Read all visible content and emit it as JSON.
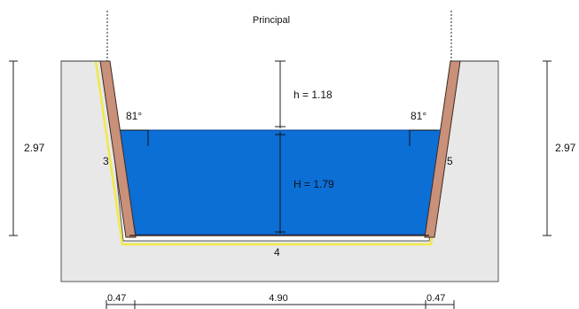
{
  "title": "Principal",
  "depth_left": "2.97",
  "depth_right": "2.97",
  "freeboard": "h = 1.18",
  "water_depth": "H = 1.79",
  "angle_left": "81°",
  "angle_right": "81°",
  "wall_left_id": "3",
  "wall_right_id": "5",
  "base_id": "4",
  "bottom_left_width": "0.47",
  "bottom_center_width": "4.90",
  "bottom_right_width": "0.47",
  "colors": {
    "water": "#0b6fd6",
    "water_edge": "#0a3d8f",
    "wall": "#c9907a",
    "wall_edge": "#3d2a22",
    "liner": "#f2e84a",
    "soil": "#e8e8e8",
    "soil_edge": "#555555",
    "dim": "#222222"
  }
}
